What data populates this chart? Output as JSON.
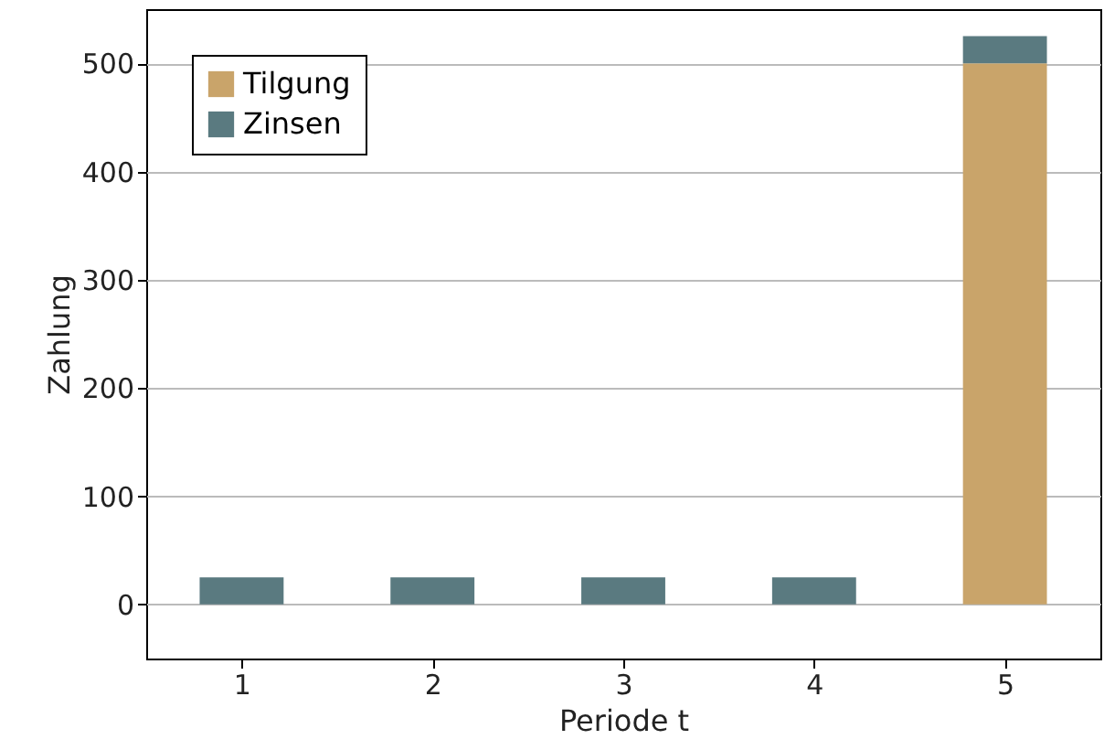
{
  "chart_data": {
    "type": "bar",
    "stacked": true,
    "xlabel": "Periode t",
    "ylabel": "Zahlung",
    "x": [
      1,
      2,
      3,
      4,
      5
    ],
    "xlim": [
      0.5,
      5.5
    ],
    "xticks": [
      1,
      2,
      3,
      4,
      5
    ],
    "ylim": [
      -50,
      550
    ],
    "yticks": [
      0,
      100,
      200,
      300,
      400,
      500
    ],
    "grid": "y",
    "legend": "top left",
    "series": [
      {
        "name": "Tilgung",
        "color": "#c9a46a",
        "values": [
          0,
          0,
          0,
          0,
          500
        ]
      },
      {
        "name": "Zinsen",
        "color": "#5a7a80",
        "values": [
          25,
          25,
          25,
          25,
          25
        ]
      }
    ]
  }
}
